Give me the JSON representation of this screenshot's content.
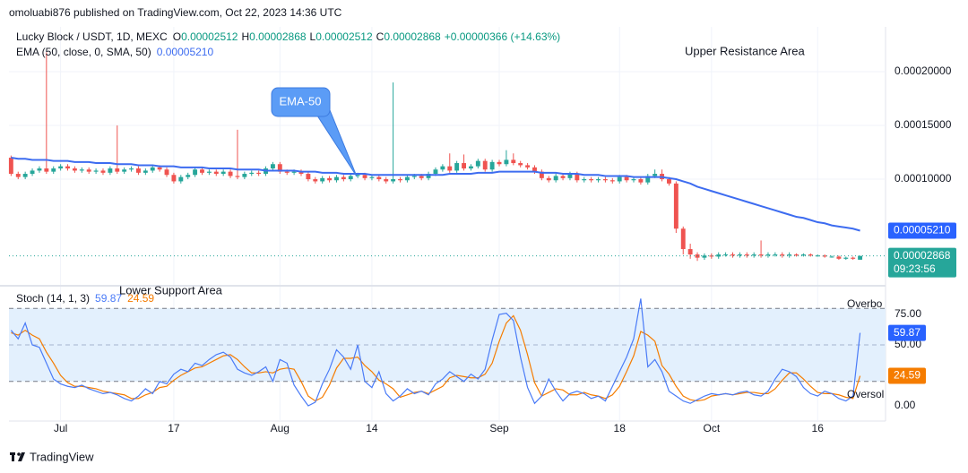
{
  "header": {
    "published": "omoluabi876 published on TradingView.com, Oct 22, 2023 14:36 UTC",
    "ohlc": [
      {
        "key": "O",
        "value": "0.00002512"
      },
      {
        "key": "H",
        "value": "0.00002868"
      },
      {
        "key": "L",
        "value": "0.00002512"
      },
      {
        "key": "C",
        "value": "0.00002868"
      }
    ],
    "change": "+0.00000366 (+14.63%)"
  },
  "footer": {
    "brand": "TradingView"
  },
  "chart_data": [
    {
      "type": "candlestick",
      "title": "Lucky Block / USDT, 1D, MEXC",
      "up_color": "#26a69a",
      "down_color": "#ef5350",
      "x": [
        -7,
        -6,
        -5,
        -4,
        -3,
        -2,
        -1,
        0,
        1,
        2,
        3,
        4,
        5,
        6,
        7,
        8,
        9,
        10,
        11,
        12,
        13,
        14,
        15,
        16,
        17,
        18,
        19,
        20,
        21,
        22,
        23,
        24,
        25,
        26,
        27,
        28,
        29,
        30,
        31,
        32,
        33,
        34,
        35,
        36,
        37,
        38,
        39,
        40,
        41,
        42,
        43,
        44,
        45,
        46,
        47,
        48,
        49,
        50,
        51,
        52,
        53,
        54,
        55,
        56,
        57,
        58,
        59,
        60,
        61,
        62,
        63,
        64,
        65,
        66,
        67,
        68,
        69,
        70,
        71,
        72,
        73,
        74,
        75,
        76,
        77,
        78,
        79,
        80,
        81,
        82,
        83,
        84,
        85,
        86,
        87,
        88,
        89,
        90,
        91,
        92,
        93,
        94,
        95,
        96,
        97,
        98,
        99,
        100,
        101,
        102,
        103,
        104,
        105,
        106,
        107,
        108,
        109,
        110,
        111,
        112,
        113
      ],
      "open": [
        0.00012,
        0.000105,
        0.000102,
        0.000105,
        0.000108,
        0.00011,
        0.000107,
        0.00011,
        0.000112,
        0.00011,
        0.000108,
        0.000109,
        0.000107,
        0.000108,
        0.000106,
        0.00011,
        0.000107,
        0.000109,
        0.00011,
        0.000106,
        0.000108,
        0.000111,
        0.000109,
        0.000104,
        9.8e-05,
        0.000102,
        0.000104,
        0.000109,
        0.000106,
        0.000107,
        0.000105,
        0.000107,
        0.000103,
        0.000102,
        0.000105,
        0.000106,
        0.000105,
        0.00011,
        0.000114,
        0.000107,
        0.000106,
        0.000107,
        0.000105,
        0.0001,
        9.8e-05,
        0.000101,
        9.9e-05,
        0.000102,
        0.0001,
        0.000103,
        0.000104,
        0.000101,
        0.000102,
        0.0001,
        9.8e-05,
        0.0001,
        9.9e-05,
        0.000102,
        0.000103,
        0.000101,
        0.000105,
        0.000109,
        0.000112,
        0.000108,
        0.000115,
        0.00011,
        0.000112,
        0.000117,
        0.000109,
        0.000116,
        0.000114,
        0.000118,
        0.000115,
        0.000113,
        0.000111,
        0.000107,
        0.000101,
        9.9e-05,
        0.000103,
        0.000101,
        0.000105,
        9.9e-05,
        0.0001,
        9.9e-05,
        0.0001,
        9.9e-05,
        9.8e-05,
        0.000102,
        9.9e-05,
        0.0001,
        9.7e-05,
        0.000103,
        0.000105,
        0.0001,
        9.6e-05,
        5.4e-05,
        3.5e-05,
        3e-05,
        2.7e-05,
        2.9e-05,
        2.8e-05,
        3e-05,
        3e-05,
        2.9e-05,
        3e-05,
        2.9e-05,
        3e-05,
        2.9e-05,
        3e-05,
        3e-05,
        2.9e-05,
        3e-05,
        2.9e-05,
        3e-05,
        2.9e-05,
        2.9e-05,
        2.8e-05,
        2.8e-05,
        2.6e-05,
        2.7e-05,
        2.512e-05
      ],
      "high": [
        0.000122,
        0.000107,
        0.000107,
        0.00011,
        0.000112,
        0.000218,
        0.000112,
        0.000114,
        0.000114,
        0.000112,
        0.000111,
        0.000111,
        0.00011,
        0.00011,
        0.000112,
        0.00015,
        0.000111,
        0.000112,
        0.000112,
        0.00011,
        0.000113,
        0.000113,
        0.000111,
        0.000106,
        0.000104,
        0.000106,
        0.000111,
        0.000111,
        0.000109,
        0.000109,
        0.000109,
        0.000109,
        0.000146,
        0.000107,
        0.000108,
        0.000108,
        0.000112,
        0.000116,
        0.000116,
        0.000109,
        0.000109,
        0.000109,
        0.000107,
        0.000102,
        0.000103,
        0.000103,
        0.000104,
        0.000104,
        0.000105,
        0.000106,
        0.000106,
        0.000104,
        0.000104,
        0.000102,
        0.00019,
        0.000102,
        0.000104,
        0.000105,
        0.000105,
        0.000107,
        0.000111,
        0.000114,
        0.000124,
        0.000117,
        0.000123,
        0.000114,
        0.000119,
        0.000119,
        0.000118,
        0.000118,
        0.000127,
        0.000124,
        0.000117,
        0.000115,
        0.000113,
        0.000109,
        0.000103,
        0.000105,
        0.000105,
        0.000107,
        0.000107,
        0.000102,
        0.000102,
        0.000102,
        0.000102,
        0.000101,
        0.000104,
        0.000104,
        0.000102,
        0.000102,
        0.000105,
        0.000109,
        0.000109,
        0.000102,
        9.8e-05,
        5.6e-05,
        4e-05,
        3.2e-05,
        3.1e-05,
        3.1e-05,
        3.2e-05,
        3.2e-05,
        3.2e-05,
        3.2e-05,
        3.2e-05,
        3.2e-05,
        4.3e-05,
        3.2e-05,
        3.2e-05,
        3.2e-05,
        3.2e-05,
        3.1e-05,
        3.1e-05,
        3.1e-05,
        3e-05,
        3e-05,
        2.9e-05,
        2.9e-05,
        2.8e-05,
        2.8e-05,
        2.868e-05
      ],
      "low": [
        0.000103,
        0.0001,
        0.0001,
        0.000103,
        0.000106,
        0.000105,
        0.000105,
        0.000108,
        0.000108,
        0.000106,
        0.000106,
        0.000105,
        0.000105,
        0.000104,
        0.000104,
        0.000105,
        0.000105,
        0.000107,
        0.000104,
        0.000104,
        0.000106,
        0.000107,
        0.000102,
        9.6e-05,
        9.6e-05,
        0.0001,
        0.000102,
        0.000104,
        0.000104,
        0.000103,
        0.000103,
        0.000101,
        0.0001,
        0.0001,
        0.000103,
        0.000103,
        0.000103,
        0.000108,
        0.000105,
        0.000104,
        0.000104,
        0.000103,
        9.8e-05,
        9.6e-05,
        9.6e-05,
        9.7e-05,
        9.7e-05,
        9.8e-05,
        9.8e-05,
        0.000101,
        9.9e-05,
        9.9e-05,
        9.8e-05,
        9.6e-05,
        9.6e-05,
        9.7e-05,
        9.7e-05,
        0.0001,
        9.9e-05,
        9.9e-05,
        0.000103,
        0.000107,
        0.000106,
        0.000106,
        0.000108,
        0.000108,
        0.00011,
        0.000107,
        0.000107,
        0.000112,
        0.000112,
        0.000113,
        0.000111,
        0.000109,
        0.000105,
        9.9e-05,
        9.7e-05,
        9.7e-05,
        9.9e-05,
        9.9e-05,
        9.7e-05,
        9.7e-05,
        9.7e-05,
        9.7e-05,
        9.7e-05,
        9.6e-05,
        9.6e-05,
        9.7e-05,
        9.7e-05,
        9.5e-05,
        9.5e-05,
        0.000101,
        9.8e-05,
        9.4e-05,
        5e-05,
        3e-05,
        2.6e-05,
        2.4e-05,
        2.5e-05,
        2.6e-05,
        2.6e-05,
        2.8e-05,
        2.7e-05,
        2.7e-05,
        2.7e-05,
        2.7e-05,
        2.7e-05,
        2.7e-05,
        2.8e-05,
        2.7e-05,
        2.7e-05,
        2.8e-05,
        2.8e-05,
        2.8e-05,
        2.8e-05,
        2.7e-05,
        2.7e-05,
        2.5e-05,
        2.5e-05,
        2.5e-05,
        2.512e-05
      ],
      "close": [
        0.000105,
        0.000102,
        0.000105,
        0.000108,
        0.00011,
        0.000107,
        0.00011,
        0.000112,
        0.00011,
        0.000108,
        0.000109,
        0.000107,
        0.000108,
        0.000106,
        0.00011,
        0.000107,
        0.000109,
        0.00011,
        0.000106,
        0.000108,
        0.000111,
        0.000109,
        0.000104,
        9.8e-05,
        0.000102,
        0.000104,
        0.000109,
        0.000106,
        0.000107,
        0.000105,
        0.000107,
        0.000103,
        0.000102,
        0.000105,
        0.000106,
        0.000105,
        0.00011,
        0.000114,
        0.000107,
        0.000106,
        0.000107,
        0.000105,
        0.0001,
        9.8e-05,
        0.000101,
        9.9e-05,
        0.000102,
        0.0001,
        0.000103,
        0.000104,
        0.000101,
        0.000102,
        0.0001,
        9.8e-05,
        0.0001,
        9.9e-05,
        0.000102,
        0.000103,
        0.000101,
        0.000105,
        0.000109,
        0.000112,
        0.000108,
        0.000115,
        0.00011,
        0.000112,
        0.000117,
        0.000109,
        0.000116,
        0.000114,
        0.000118,
        0.000115,
        0.000113,
        0.000111,
        0.000107,
        0.000101,
        9.9e-05,
        0.000103,
        0.000101,
        0.000105,
        9.9e-05,
        0.0001,
        9.9e-05,
        0.0001,
        9.9e-05,
        9.8e-05,
        0.000102,
        9.9e-05,
        0.0001,
        9.7e-05,
        0.000103,
        0.000105,
        0.0001,
        9.6e-05,
        5.4e-05,
        3.5e-05,
        3e-05,
        2.7e-05,
        2.9e-05,
        2.8e-05,
        3e-05,
        3e-05,
        2.9e-05,
        3e-05,
        2.9e-05,
        3e-05,
        2.9e-05,
        3e-05,
        3e-05,
        2.9e-05,
        3e-05,
        2.9e-05,
        3e-05,
        2.9e-05,
        2.9e-05,
        2.8e-05,
        2.8e-05,
        2.6e-05,
        2.7e-05,
        2.6e-05,
        2.868e-05
      ],
      "last_close_label": "0.00002868",
      "countdown": "09:23:56",
      "series": [
        {
          "name": "EMA (50, close, 0, SMA, 50)",
          "color": "#3d6cf0",
          "last_value_label": "0.00005210",
          "values": [
            0.00012,
            0.000119,
            0.000119,
            0.000118,
            0.000118,
            0.000118,
            0.000117,
            0.000117,
            0.000117,
            0.000116,
            0.000116,
            0.000116,
            0.000115,
            0.000115,
            0.000115,
            0.000114,
            0.000114,
            0.000114,
            0.000113,
            0.000113,
            0.000113,
            0.000112,
            0.000112,
            0.000112,
            0.000111,
            0.000111,
            0.000111,
            0.000111,
            0.00011,
            0.00011,
            0.00011,
            0.00011,
            0.000109,
            0.000109,
            0.000109,
            0.000109,
            0.000108,
            0.000108,
            0.000108,
            0.000108,
            0.000108,
            0.000107,
            0.000107,
            0.000107,
            0.000106,
            0.000106,
            0.000106,
            0.000105,
            0.000105,
            0.000105,
            0.000105,
            0.000104,
            0.000104,
            0.000104,
            0.000104,
            0.000104,
            0.000104,
            0.000104,
            0.000104,
            0.000104,
            0.000104,
            0.000104,
            0.000105,
            0.000105,
            0.000105,
            0.000105,
            0.000106,
            0.000106,
            0.000106,
            0.000107,
            0.000107,
            0.000107,
            0.000107,
            0.000107,
            0.000107,
            0.000106,
            0.000106,
            0.000106,
            0.000105,
            0.000105,
            0.000105,
            0.000104,
            0.000104,
            0.000104,
            0.000103,
            0.000103,
            0.000103,
            0.000103,
            0.000102,
            0.000102,
            0.000102,
            0.000102,
            0.000102,
            0.000101,
            0.0001,
            9.8e-05,
            9.6e-05,
            9.3e-05,
            9.1e-05,
            8.9e-05,
            8.7e-05,
            8.5e-05,
            8.3e-05,
            8.1e-05,
            7.9e-05,
            7.7e-05,
            7.5e-05,
            7.3e-05,
            7.1e-05,
            6.9e-05,
            6.7e-05,
            6.5e-05,
            6.4e-05,
            6.2e-05,
            6e-05,
            5.9e-05,
            5.7e-05,
            5.6e-05,
            5.5e-05,
            5.4e-05,
            5.21e-05
          ]
        }
      ],
      "xlim": [
        -7.3,
        116.6
      ],
      "xticks": [
        {
          "value": 0,
          "label": "Jul"
        },
        {
          "value": 16,
          "label": "17"
        },
        {
          "value": 31,
          "label": "Aug"
        },
        {
          "value": 44,
          "label": "14"
        },
        {
          "value": 62,
          "label": "Sep"
        },
        {
          "value": 79,
          "label": "18"
        },
        {
          "value": 92,
          "label": "Oct"
        },
        {
          "value": 107,
          "label": "16"
        }
      ],
      "ylim": [
        1.7e-06,
        0.0002417
      ],
      "yticks": [
        {
          "value": 0.0001,
          "label": "0.00010000"
        },
        {
          "value": 0.00015,
          "label": "0.00015000"
        },
        {
          "value": 0.0002,
          "label": "0.00020000"
        }
      ],
      "grid": true,
      "annotations": [
        "Upper Resistance Area",
        "Lower Support Area",
        "EMA-50"
      ]
    },
    {
      "type": "line",
      "title": "Stoch (14, 1, 3)",
      "series": [
        {
          "color": "#4a7bf7",
          "values": [
            62,
            55,
            68,
            50,
            48,
            35,
            22,
            18,
            16,
            15,
            17,
            14,
            12,
            10,
            11,
            9,
            6,
            4,
            8,
            14,
            10,
            20,
            18,
            26,
            30,
            28,
            35,
            33,
            38,
            42,
            44,
            40,
            30,
            27,
            25,
            28,
            32,
            20,
            38,
            35,
            17,
            8,
            0,
            3,
            18,
            30,
            46,
            40,
            30,
            50,
            20,
            15,
            28,
            10,
            4,
            8,
            14,
            10,
            12,
            9,
            18,
            22,
            28,
            24,
            20,
            26,
            22,
            30,
            54,
            75,
            76,
            70,
            40,
            15,
            2,
            8,
            22,
            12,
            4,
            10,
            12,
            10,
            6,
            8,
            4,
            16,
            28,
            40,
            55,
            88,
            32,
            38,
            28,
            12,
            8,
            4,
            2,
            5,
            8,
            10,
            9,
            10,
            9,
            11,
            12,
            9,
            8,
            12,
            22,
            30,
            28,
            24,
            15,
            10,
            8,
            12,
            10,
            6,
            4,
            8,
            59.87
          ]
        },
        {
          "color": "#f57c00",
          "values": [
            60,
            58,
            62,
            58,
            55,
            44,
            35,
            25,
            19,
            16,
            16,
            15,
            14,
            12,
            11,
            10,
            9,
            6,
            6,
            9,
            11,
            15,
            16,
            21,
            25,
            28,
            31,
            32,
            35,
            38,
            41,
            42,
            38,
            32,
            27,
            27,
            28,
            27,
            30,
            31,
            30,
            20,
            8,
            4,
            7,
            17,
            31,
            39,
            39,
            40,
            33,
            28,
            21,
            18,
            14,
            7,
            9,
            11,
            12,
            10,
            13,
            16,
            23,
            25,
            24,
            23,
            23,
            26,
            35,
            53,
            68,
            74,
            62,
            42,
            19,
            8,
            11,
            14,
            13,
            9,
            9,
            11,
            9,
            8,
            6,
            9,
            16,
            28,
            41,
            61,
            58,
            53,
            33,
            26,
            16,
            8,
            5,
            4,
            5,
            8,
            9,
            10,
            9,
            10,
            11,
            11,
            10,
            10,
            14,
            21,
            27,
            27,
            22,
            16,
            11,
            10,
            10,
            9,
            7,
            6,
            24.59
          ]
        }
      ],
      "ylim": [
        -12.5,
        97.8
      ],
      "yticks": [
        {
          "value": 0,
          "label": "0.00"
        },
        {
          "value": 50,
          "label": "50.00"
        },
        {
          "value": 75,
          "label": "75.00"
        }
      ],
      "bands": [
        20,
        80
      ],
      "midline": 50,
      "band_color": "#e3f0fd",
      "annotations": [
        "Overbo",
        "Oversol"
      ]
    }
  ]
}
